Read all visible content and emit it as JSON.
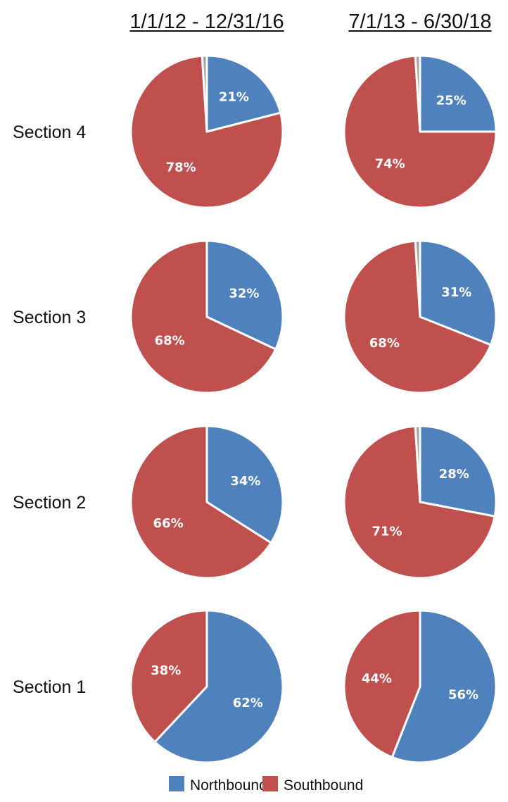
{
  "chart_data": {
    "type": "pie",
    "columns": [
      "1/1/12 - 12/31/16",
      "7/1/13 - 6/30/18"
    ],
    "rows": [
      "Section 4",
      "Section 3",
      "Section 2",
      "Section 1"
    ],
    "series": [
      {
        "name": "Northbound",
        "color": "#4F81BD"
      },
      {
        "name": "Southbound",
        "color": "#C0504D"
      }
    ],
    "pies": [
      {
        "row": "Section 4",
        "column": "1/1/12 - 12/31/16",
        "values": [
          21,
          78,
          1
        ]
      },
      {
        "row": "Section 4",
        "column": "7/1/13 - 6/30/18",
        "values": [
          25,
          74,
          1
        ]
      },
      {
        "row": "Section 3",
        "column": "1/1/12 - 12/31/16",
        "values": [
          32,
          68
        ]
      },
      {
        "row": "Section 3",
        "column": "7/1/13 - 6/30/18",
        "values": [
          31,
          68,
          1
        ]
      },
      {
        "row": "Section 2",
        "column": "1/1/12 - 12/31/16",
        "values": [
          34,
          66
        ]
      },
      {
        "row": "Section 2",
        "column": "7/1/13 - 6/30/18",
        "values": [
          28,
          71,
          1
        ]
      },
      {
        "row": "Section 1",
        "column": "1/1/12 - 12/31/16",
        "values": [
          62,
          38
        ]
      },
      {
        "row": "Section 1",
        "column": "7/1/13 - 6/30/18",
        "values": [
          56,
          44
        ]
      }
    ],
    "legend": {
      "position": "bottom",
      "items": [
        "Northbound",
        "Southbound"
      ]
    }
  }
}
